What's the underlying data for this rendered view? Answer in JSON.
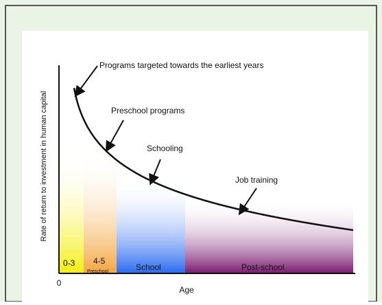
{
  "axes": {
    "y_label": "Rate of return to investment in human capital",
    "x_label": "Age",
    "origin": "0"
  },
  "annotations": [
    "Programs targeted towards the earliest years",
    "Preschool programs",
    "Schooling",
    "Job training"
  ],
  "stages": [
    {
      "label": "0-3"
    },
    {
      "label": "4-5",
      "sublabel": "Preschool"
    },
    {
      "label": "School"
    },
    {
      "label": "Post-school"
    }
  ]
}
